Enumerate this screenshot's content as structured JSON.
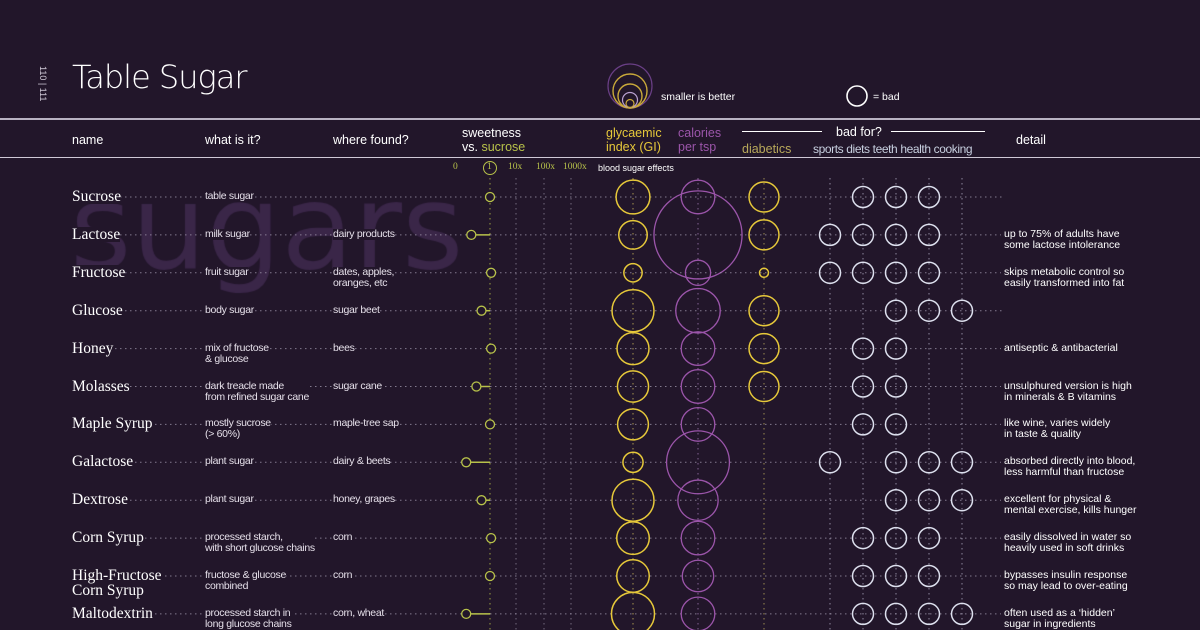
{
  "page_number": "110 | 111",
  "title": "Table Sugar",
  "watermark": "sugars",
  "legend": {
    "size_note": "smaller is better",
    "bad_note": "= bad"
  },
  "headers": {
    "name": "name",
    "what": "what is it?",
    "where": "where found?",
    "sweetness_1": "sweetness",
    "sweetness_2a": "vs. ",
    "sweetness_2b": "sucrose",
    "gi_1": "glycaemic",
    "gi_2": "index (GI)",
    "cal_1": "calories",
    "cal_2": "per tsp",
    "bad_for": "bad for?",
    "diabetics": "diabetics",
    "sports": "sports",
    "diets": "diets",
    "teeth": "teeth",
    "health": "health",
    "cooking": "cooking",
    "detail": "detail"
  },
  "colors": {
    "background": "#22162a",
    "gi": "#e6c83a",
    "calories": "#9b55aa",
    "sweetness": "#b8c24a",
    "bad": "#dde0ee"
  },
  "chart_data": {
    "type": "table",
    "sweetness_axis": {
      "ticks": [
        "0",
        "1",
        "10x",
        "100x",
        "1000x"
      ],
      "note": "blood sugar effects"
    },
    "rows": [
      {
        "name": "Sucrose",
        "what": "table sugar",
        "where": "",
        "detail": "",
        "sweetness": 1.0,
        "gi": 65,
        "calories": 16,
        "diabetics": 1,
        "bad_for": [
          "diets",
          "teeth",
          "health"
        ]
      },
      {
        "name": "Lactose",
        "what": "milk sugar",
        "where": "dairy products",
        "detail": "up to 75% of adults have\nsome lactose intolerance",
        "sweetness": 0.45,
        "gi": 46,
        "calories": 110,
        "diabetics": 1,
        "bad_for": [
          "sports",
          "diets",
          "teeth",
          "health"
        ]
      },
      {
        "name": "Fructose",
        "what": "fruit sugar",
        "where": "dates, apples,\noranges, etc",
        "detail": "skips metabolic control so\neasily transformed into fat",
        "sweetness": 1.1,
        "gi": 19,
        "calories": 9,
        "diabetics": 0.3,
        "bad_for": [
          "sports",
          "diets",
          "teeth",
          "health"
        ]
      },
      {
        "name": "Glucose",
        "what": "body sugar",
        "where": "sugar beet",
        "detail": "",
        "sweetness": 0.75,
        "gi": 100,
        "calories": 28,
        "diabetics": 1,
        "bad_for": [
          "teeth",
          "health",
          "cooking"
        ]
      },
      {
        "name": "Honey",
        "what": "mix of fructose\n& glucose",
        "where": "bees",
        "detail": "antiseptic & antibacterial",
        "sweetness": 1.1,
        "gi": 58,
        "calories": 16,
        "diabetics": 1,
        "bad_for": [
          "diets",
          "teeth"
        ]
      },
      {
        "name": "Molasses",
        "what": "dark treacle made\nfrom refined sugar cane",
        "where": "sugar cane",
        "detail": "unsulphured version is high\nin minerals & B vitamins",
        "sweetness": 0.6,
        "gi": 55,
        "calories": 16,
        "diabetics": 1,
        "bad_for": [
          "diets",
          "teeth"
        ]
      },
      {
        "name": "Maple Syrup",
        "what": "mostly sucrose\n(> 60%)",
        "where": "maple-tree sap",
        "detail": "like wine, varies widely\nin taste & quality",
        "sweetness": 1.0,
        "gi": 54,
        "calories": 16,
        "diabetics": 0,
        "bad_for": [
          "diets",
          "teeth"
        ]
      },
      {
        "name": "Galactose",
        "what": "plant sugar",
        "where": "dairy & beets",
        "detail": "absorbed directly into blood,\nless harmful than fructose",
        "sweetness": 0.3,
        "gi": 23,
        "calories": 56,
        "diabetics": 0,
        "bad_for": [
          "sports",
          "teeth",
          "health",
          "cooking"
        ]
      },
      {
        "name": "Dextrose",
        "what": "plant sugar",
        "where": "honey, grapes",
        "detail": "excellent for physical &\nmental exercise, kills hunger",
        "sweetness": 0.75,
        "gi": 100,
        "calories": 23,
        "diabetics": 0,
        "bad_for": [
          "teeth",
          "health",
          "cooking"
        ]
      },
      {
        "name": "Corn Syrup",
        "what": "processed starch,\nwith short glucose chains",
        "where": "corn",
        "detail": "easily dissolved in water so\nheavily used in soft drinks",
        "sweetness": 1.1,
        "gi": 60,
        "calories": 16,
        "diabetics": 0,
        "bad_for": [
          "diets",
          "teeth",
          "health"
        ]
      },
      {
        "name": "High-Fructose\nCorn Syrup",
        "what": "fructose & glucose\ncombined",
        "where": "corn",
        "detail": "bypasses insulin response\nso may lead to over-eating",
        "sweetness": 1.0,
        "gi": 60,
        "calories": 14,
        "diabetics": 0,
        "bad_for": [
          "diets",
          "teeth",
          "health"
        ]
      },
      {
        "name": "Maltodextrin",
        "what": "processed starch in\nlong glucose chains",
        "where": "corn, wheat",
        "detail": "often used as a ‘hidden’\nsugar in ingredients",
        "sweetness": 0.3,
        "gi": 105,
        "calories": 16,
        "diabetics": 0,
        "bad_for": [
          "diets",
          "teeth",
          "health",
          "cooking"
        ]
      }
    ]
  }
}
